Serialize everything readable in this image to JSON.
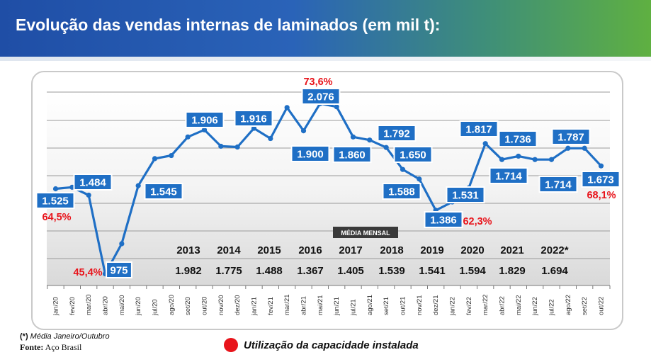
{
  "header": {
    "title": "Evolução das vendas internas de laminados (em mil t):"
  },
  "colors": {
    "line": "#1f6fc5",
    "label_bg": "#1f6fc5",
    "pct": "#e8141b",
    "label_text": "#ffffff"
  },
  "chart_data": {
    "type": "line",
    "title": "Evolução das vendas internas de laminados (em mil t):",
    "categories": [
      "jan/20",
      "fev/20",
      "mar/20",
      "abr/20",
      "mai/20",
      "jun/20",
      "jul/20",
      "ago/20",
      "set/20",
      "out/20",
      "nov/20",
      "dez/20",
      "jan/21",
      "fev/21",
      "mar/21",
      "abr/21",
      "mai/21",
      "jun/21",
      "jul/21",
      "ago/21",
      "set/21",
      "out/21",
      "nov/21",
      "dez/21",
      "jan/22",
      "fev/22",
      "mar/22",
      "abr/22",
      "mai/22",
      "jun/22",
      "jul/22",
      "ago/22",
      "set/22",
      "out/22"
    ],
    "series": [
      {
        "name": "Vendas internas de laminados (mil t)",
        "values": [
          1525,
          1535,
          1484,
          975,
          1170,
          1545,
          1720,
          1740,
          1860,
          1906,
          1800,
          1795,
          1916,
          1850,
          2050,
          1900,
          2076,
          2055,
          1860,
          1840,
          1792,
          1650,
          1588,
          1386,
          1440,
          1531,
          1817,
          1714,
          1736,
          1714,
          1714,
          1787,
          1787,
          1673
        ]
      }
    ],
    "ylim": [
      900,
      2150
    ],
    "grid": true,
    "value_labels": [
      {
        "index": 0,
        "text": "1.525"
      },
      {
        "index": 2,
        "text": "1.484"
      },
      {
        "index": 3,
        "text": "975"
      },
      {
        "index": 5,
        "text": "1.545"
      },
      {
        "index": 9,
        "text": "1.906"
      },
      {
        "index": 12,
        "text": "1.916"
      },
      {
        "index": 15,
        "text": "1.900"
      },
      {
        "index": 16,
        "text": "2.076"
      },
      {
        "index": 18,
        "text": "1.860"
      },
      {
        "index": 20,
        "text": "1.792"
      },
      {
        "index": 21,
        "text": "1.650"
      },
      {
        "index": 22,
        "text": "1.588"
      },
      {
        "index": 23,
        "text": "1.386"
      },
      {
        "index": 25,
        "text": "1.531"
      },
      {
        "index": 26,
        "text": "1.817"
      },
      {
        "index": 27,
        "text": "1.714"
      },
      {
        "index": 28,
        "text": "1.736"
      },
      {
        "index": 30,
        "text": "1.714"
      },
      {
        "index": 31,
        "text": "1.787"
      },
      {
        "index": 33,
        "text": "1.673"
      }
    ],
    "capacity_labels": [
      {
        "index": 0,
        "text": "64,5%"
      },
      {
        "index": 3,
        "text": "45,4%"
      },
      {
        "index": 16,
        "text": "73,6%"
      },
      {
        "index": 23,
        "text": "62,3%"
      },
      {
        "index": 33,
        "text": "68,1%"
      }
    ],
    "monthly_average": {
      "label": "MÉDIA MENSAL",
      "years": [
        "2013",
        "2014",
        "2015",
        "2016",
        "2017",
        "2018",
        "2019",
        "2020",
        "2021",
        "2022*"
      ],
      "values": [
        "1.982",
        "1.775",
        "1.488",
        "1.367",
        "1.405",
        "1.539",
        "1.541",
        "1.594",
        "1.829",
        "1.694"
      ]
    },
    "legend": [
      "Utilização da capacidade instalada"
    ]
  },
  "footnote": {
    "paren": "(*)",
    "text": "Média Janeiro/Outubro"
  },
  "source": {
    "label": "Fonte:",
    "text": "Aço Brasil"
  }
}
